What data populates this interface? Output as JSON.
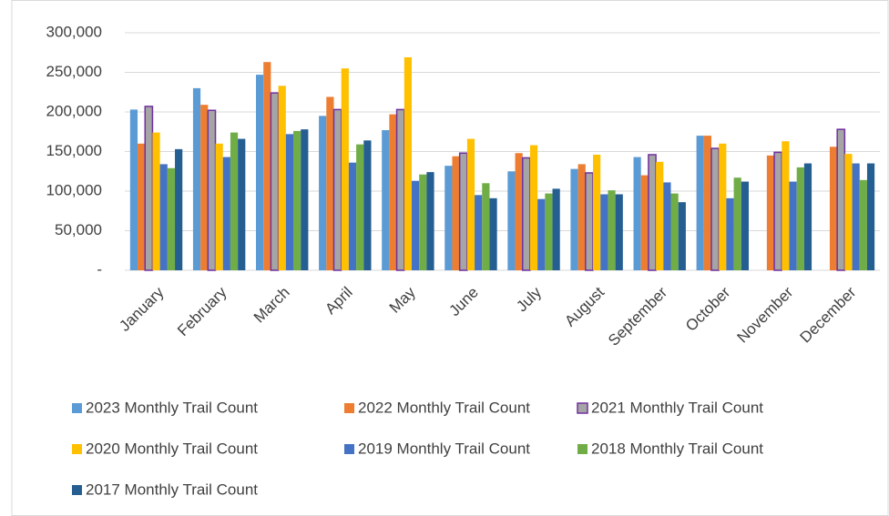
{
  "chart_data": {
    "type": "bar",
    "categories": [
      "January",
      "February",
      "March",
      "April",
      "May",
      "June",
      "July",
      "August",
      "September",
      "October",
      "November",
      "December"
    ],
    "series": [
      {
        "name": "2023 Monthly Trail Count",
        "color": "#5b9bd5",
        "values": [
          203000,
          230000,
          247000,
          195000,
          177000,
          132000,
          125000,
          128000,
          143000,
          170000,
          null,
          null
        ]
      },
      {
        "name": "2022 Monthly Trail Count",
        "color": "#ed7d31",
        "values": [
          160000,
          209000,
          263000,
          219000,
          197000,
          144000,
          148000,
          134000,
          120000,
          170000,
          145000,
          156000
        ]
      },
      {
        "name": "2021 Monthly Trail Count",
        "color": "#a5a5a5",
        "stroke": "#7030a0",
        "values": [
          207000,
          202000,
          224000,
          203000,
          203000,
          148000,
          142000,
          123000,
          146000,
          154000,
          149000,
          178000
        ]
      },
      {
        "name": "2020 Monthly Trail Count",
        "color": "#ffc000",
        "values": [
          174000,
          160000,
          233000,
          255000,
          269000,
          166000,
          158000,
          146000,
          137000,
          160000,
          163000,
          147000
        ]
      },
      {
        "name": "2019 Monthly Trail Count",
        "color": "#4472c4",
        "values": [
          134000,
          143000,
          172000,
          136000,
          113000,
          95000,
          90000,
          96000,
          111000,
          91000,
          112000,
          135000
        ]
      },
      {
        "name": "2018 Monthly Trail Count",
        "color": "#70ad47",
        "values": [
          129000,
          174000,
          176000,
          159000,
          121000,
          110000,
          97000,
          101000,
          97000,
          117000,
          130000,
          114000
        ]
      },
      {
        "name": "2017 Monthly Trail Count",
        "color": "#255e91",
        "values": [
          153000,
          166000,
          178000,
          164000,
          124000,
          91000,
          103000,
          96000,
          86000,
          112000,
          135000,
          135000
        ]
      }
    ],
    "ylim": [
      0,
      300000
    ],
    "yticks": [
      {
        "value": 0,
        "label": "-"
      },
      {
        "value": 50000,
        "label": "50,000"
      },
      {
        "value": 100000,
        "label": "100,000"
      },
      {
        "value": 150000,
        "label": "150,000"
      },
      {
        "value": 200000,
        "label": "200,000"
      },
      {
        "value": 250000,
        "label": "250,000"
      },
      {
        "value": 300000,
        "label": "300,000"
      }
    ],
    "grid": true,
    "legend": "bottom"
  }
}
